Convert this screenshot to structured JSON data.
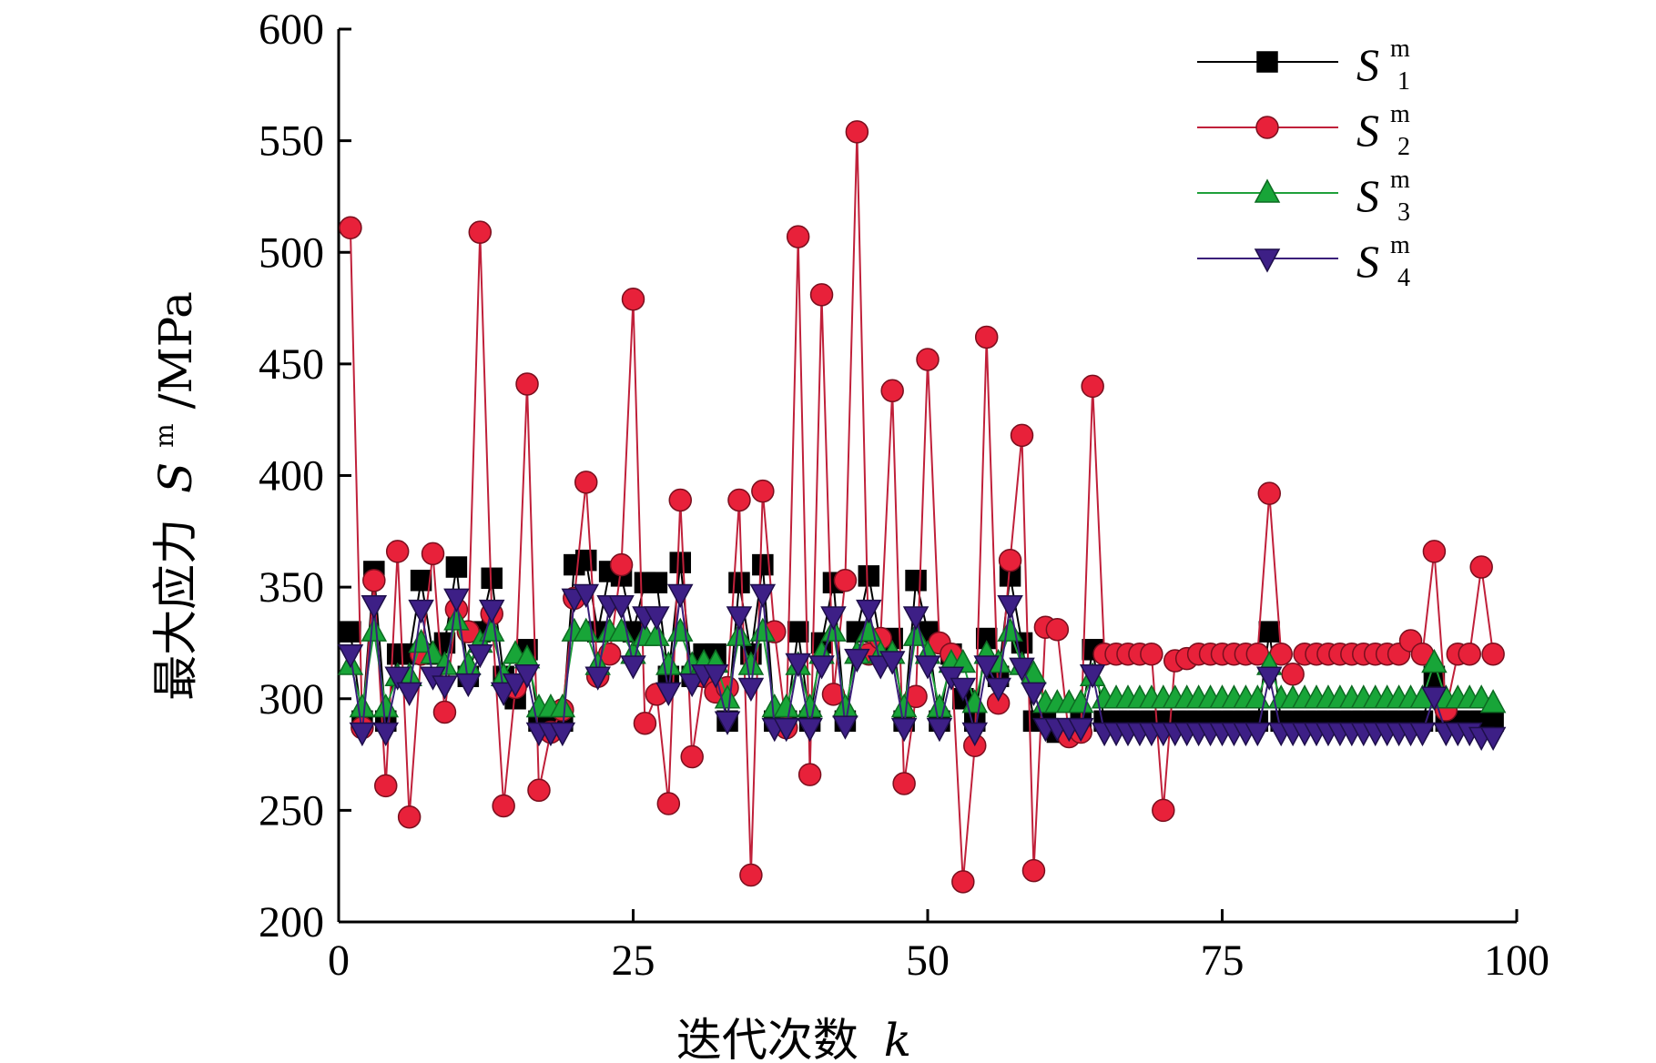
{
  "chart_data": {
    "type": "line",
    "xlabel": "迭代次数",
    "xlabel_var": "k",
    "ylabel": "最大应力",
    "ylabel_var": "S",
    "ylabel_sup": "m",
    "ylabel_unit": "/MPa",
    "xlim": [
      0,
      100
    ],
    "ylim": [
      200,
      600
    ],
    "xticks": [
      0,
      25,
      50,
      75,
      100
    ],
    "yticks": [
      200,
      250,
      300,
      350,
      400,
      450,
      500,
      550,
      600
    ],
    "grid": false,
    "legend_position": "top-right",
    "x": [
      1,
      2,
      3,
      4,
      5,
      6,
      7,
      8,
      9,
      10,
      11,
      12,
      13,
      14,
      15,
      16,
      17,
      18,
      19,
      20,
      21,
      22,
      23,
      24,
      25,
      26,
      27,
      28,
      29,
      30,
      31,
      32,
      33,
      34,
      35,
      36,
      37,
      38,
      39,
      40,
      41,
      42,
      43,
      44,
      45,
      46,
      47,
      48,
      49,
      50,
      51,
      52,
      53,
      54,
      55,
      56,
      57,
      58,
      59,
      60,
      61,
      62,
      63,
      64,
      65,
      66,
      67,
      68,
      69,
      70,
      71,
      72,
      73,
      74,
      75,
      76,
      77,
      78,
      79,
      80,
      81,
      82,
      83,
      84,
      85,
      86,
      87,
      88,
      89,
      90,
      91,
      92,
      93,
      94,
      95,
      96,
      97,
      98
    ],
    "series": [
      {
        "name": "S",
        "sub": "1",
        "sup": "m",
        "color": "#000000",
        "marker": "square",
        "values": [
          330,
          290,
          357,
          290,
          320,
          320,
          353,
          320,
          325,
          359,
          310,
          330,
          354,
          310,
          300,
          322,
          290,
          290,
          290,
          360,
          362,
          330,
          357,
          355,
          330,
          352,
          352,
          310,
          361,
          310,
          320,
          320,
          290,
          352,
          320,
          360,
          290,
          290,
          330,
          290,
          325,
          352,
          290,
          330,
          355,
          325,
          327,
          290,
          353,
          330,
          290,
          320,
          300,
          290,
          327,
          310,
          355,
          325,
          290,
          290,
          285,
          285,
          290,
          322,
          290,
          290,
          290,
          290,
          290,
          290,
          290,
          290,
          290,
          290,
          290,
          290,
          290,
          290,
          330,
          290,
          290,
          290,
          290,
          290,
          290,
          290,
          290,
          290,
          290,
          290,
          290,
          290,
          310,
          290,
          290,
          290,
          290,
          290
        ]
      },
      {
        "name": "S",
        "sub": "2",
        "sup": "m",
        "color": "#c0203a",
        "marker": "circle",
        "values": [
          511,
          287,
          353,
          261,
          366,
          247,
          320,
          365,
          294,
          340,
          330,
          509,
          338,
          252,
          305,
          441,
          259,
          285,
          295,
          345,
          397,
          310,
          320,
          360,
          479,
          289,
          302,
          253,
          389,
          274,
          310,
          303,
          305,
          389,
          221,
          393,
          330,
          287,
          507,
          266,
          481,
          302,
          353,
          554,
          320,
          327,
          438,
          262,
          301,
          452,
          325,
          320,
          218,
          279,
          462,
          298,
          362,
          418,
          223,
          332,
          331,
          283,
          285,
          440,
          320,
          320,
          320,
          320,
          320,
          250,
          317,
          318,
          320,
          320,
          320,
          320,
          320,
          320,
          392,
          320,
          311,
          320,
          320,
          320,
          320,
          320,
          320,
          320,
          320,
          320,
          326,
          320,
          366,
          295,
          320,
          320,
          359,
          320
        ]
      },
      {
        "name": "S",
        "sub": "3",
        "sup": "m",
        "color": "#1fa03a",
        "marker": "triangle-up",
        "values": [
          315,
          296,
          330,
          296,
          310,
          310,
          325,
          320,
          315,
          335,
          315,
          325,
          330,
          310,
          320,
          318,
          296,
          296,
          296,
          330,
          330,
          315,
          330,
          330,
          320,
          328,
          328,
          315,
          330,
          315,
          316,
          316,
          300,
          328,
          315,
          330,
          296,
          296,
          315,
          296,
          320,
          330,
          296,
          320,
          330,
          320,
          320,
          296,
          328,
          320,
          296,
          316,
          316,
          298,
          320,
          316,
          330,
          315,
          311,
          298,
          298,
          298,
          298,
          310,
          300,
          300,
          300,
          300,
          300,
          300,
          300,
          300,
          300,
          300,
          300,
          300,
          300,
          300,
          315,
          300,
          300,
          300,
          300,
          300,
          300,
          300,
          300,
          300,
          300,
          300,
          300,
          300,
          316,
          300,
          300,
          300,
          300,
          298
        ]
      },
      {
        "name": "S",
        "sub": "4",
        "sup": "m",
        "color": "#3a1f7a",
        "marker": "triangle-down",
        "values": [
          320,
          285,
          342,
          285,
          310,
          303,
          340,
          310,
          306,
          345,
          307,
          320,
          340,
          303,
          307,
          311,
          285,
          285,
          285,
          345,
          347,
          310,
          342,
          342,
          315,
          337,
          337,
          303,
          347,
          307,
          311,
          311,
          290,
          337,
          305,
          347,
          287,
          287,
          316,
          287,
          315,
          337,
          288,
          318,
          340,
          315,
          317,
          287,
          337,
          315,
          287,
          310,
          305,
          285,
          315,
          305,
          342,
          314,
          303,
          287,
          287,
          287,
          287,
          311,
          285,
          285,
          285,
          285,
          285,
          285,
          285,
          285,
          285,
          285,
          285,
          285,
          285,
          285,
          310,
          285,
          285,
          285,
          285,
          285,
          285,
          285,
          285,
          285,
          285,
          285,
          285,
          285,
          301,
          285,
          285,
          285,
          283,
          283
        ]
      }
    ]
  }
}
